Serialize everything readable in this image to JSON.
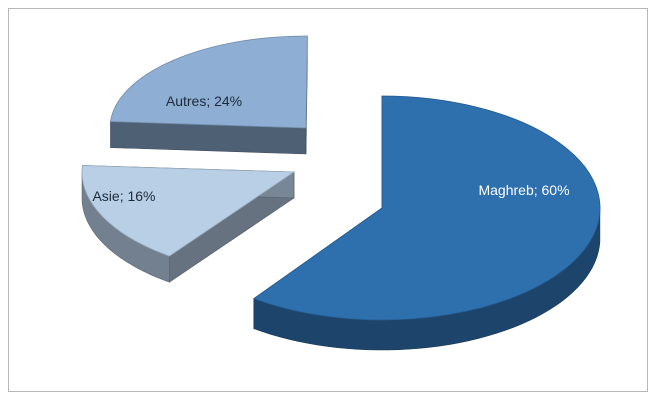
{
  "chart_data": {
    "type": "pie",
    "title": "",
    "legend": "none",
    "label_format": "category; percent",
    "slices": [
      {
        "category": "Maghreb",
        "percent": 60,
        "label": "Maghreb; 60%",
        "color": "#2e6fae"
      },
      {
        "category": "Asie",
        "percent": 16,
        "label": "Asie; 16%",
        "color": "#b9cfe6"
      },
      {
        "category": "Autres",
        "percent": 24,
        "label": "Autres; 24%",
        "color": "#8eaed3"
      }
    ]
  }
}
